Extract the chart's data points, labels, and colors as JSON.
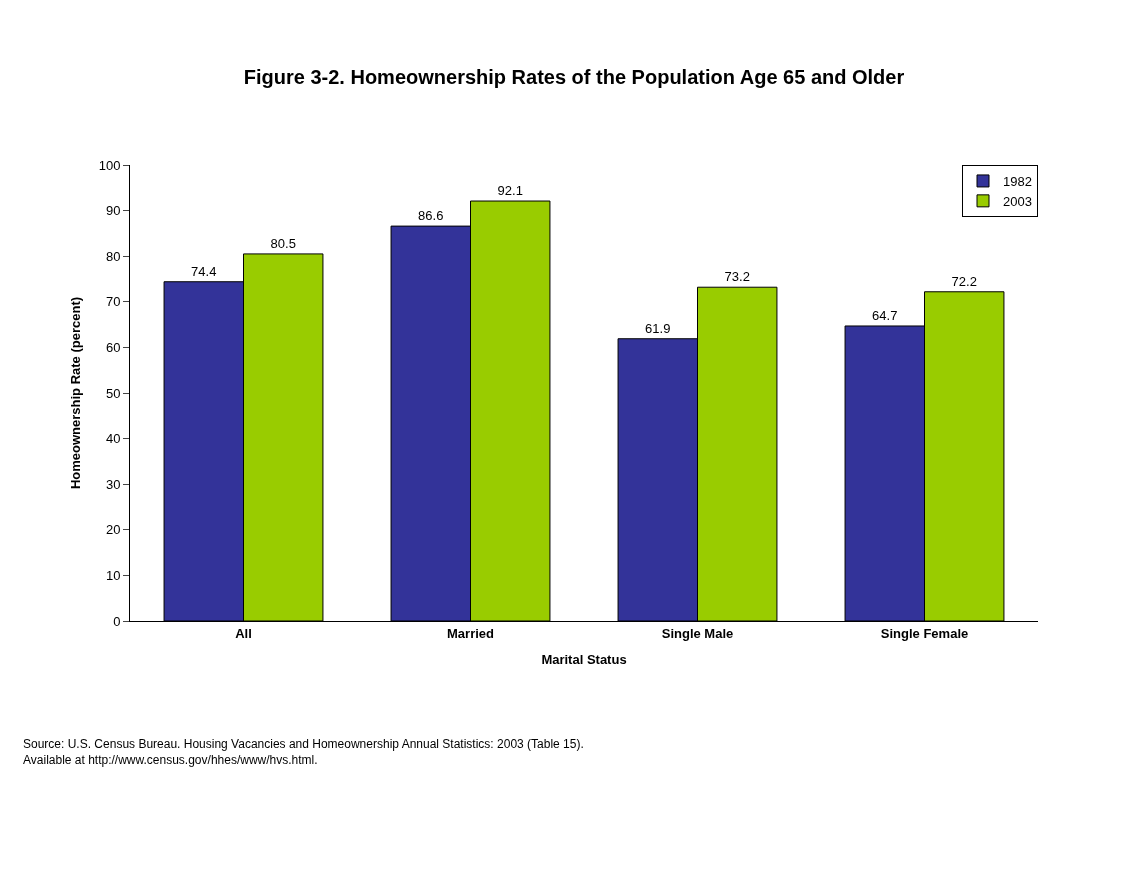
{
  "chart_data": {
    "type": "bar",
    "title": "Figure 3-2. Homeownership Rates of the Population Age 65 and Older",
    "xlabel": "Marital Status",
    "ylabel": "Homeownership Rate (percent)",
    "categories": [
      "All",
      "Married",
      "Single Male",
      "Single Female"
    ],
    "series": [
      {
        "name": "1982",
        "color": "#333399",
        "values": [
          74.4,
          86.6,
          61.9,
          64.7
        ]
      },
      {
        "name": "2003",
        "color": "#99cc00",
        "values": [
          80.5,
          92.1,
          73.2,
          72.2
        ]
      }
    ],
    "ylim": [
      0,
      100
    ],
    "yticks": [
      0,
      10,
      20,
      30,
      40,
      50,
      60,
      70,
      80,
      90,
      100
    ],
    "data_labels": true,
    "legend": "top right",
    "annotations": [
      "Source: U.S. Census Bureau. Housing Vacancies and Homeownership Annual Statistics: 2003 (Table 15).",
      "Available at http://www.census.gov/hhes/www/hvs.html."
    ]
  }
}
